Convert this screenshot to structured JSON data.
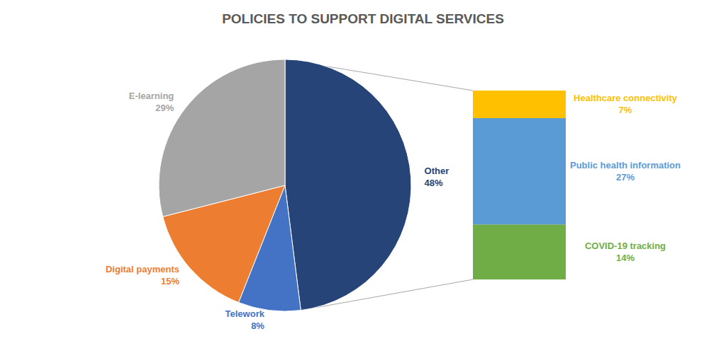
{
  "chart_data": [
    {
      "type": "pie",
      "title": "POLICIES TO SUPPORT DIGITAL SERVICES",
      "categories": [
        "Other",
        "Telework",
        "Digital payments",
        "E-learning"
      ],
      "values": [
        48,
        8,
        15,
        29
      ],
      "value_labels": [
        "48%",
        "8%",
        "15%",
        "29%"
      ],
      "colors": [
        "#264478",
        "#4472c4",
        "#ed7d31",
        "#a5a5a5"
      ],
      "data_labels": true,
      "legend": false
    },
    {
      "type": "bar",
      "stacked": true,
      "tick_labels": false,
      "data_labels": true,
      "legend": false,
      "categories": [
        null
      ],
      "series": [
        {
          "name": "COVID-19 tracking",
          "color": "#70ad47",
          "values": [
            14
          ],
          "value_labels": [
            "14%"
          ]
        },
        {
          "name": "Public health information",
          "color": "#5b9bd5",
          "values": [
            27
          ],
          "value_labels": [
            "27%"
          ]
        },
        {
          "name": "Healthcare connectivity",
          "color": "#ffc000",
          "values": [
            7
          ],
          "value_labels": [
            "7%"
          ]
        }
      ]
    }
  ]
}
